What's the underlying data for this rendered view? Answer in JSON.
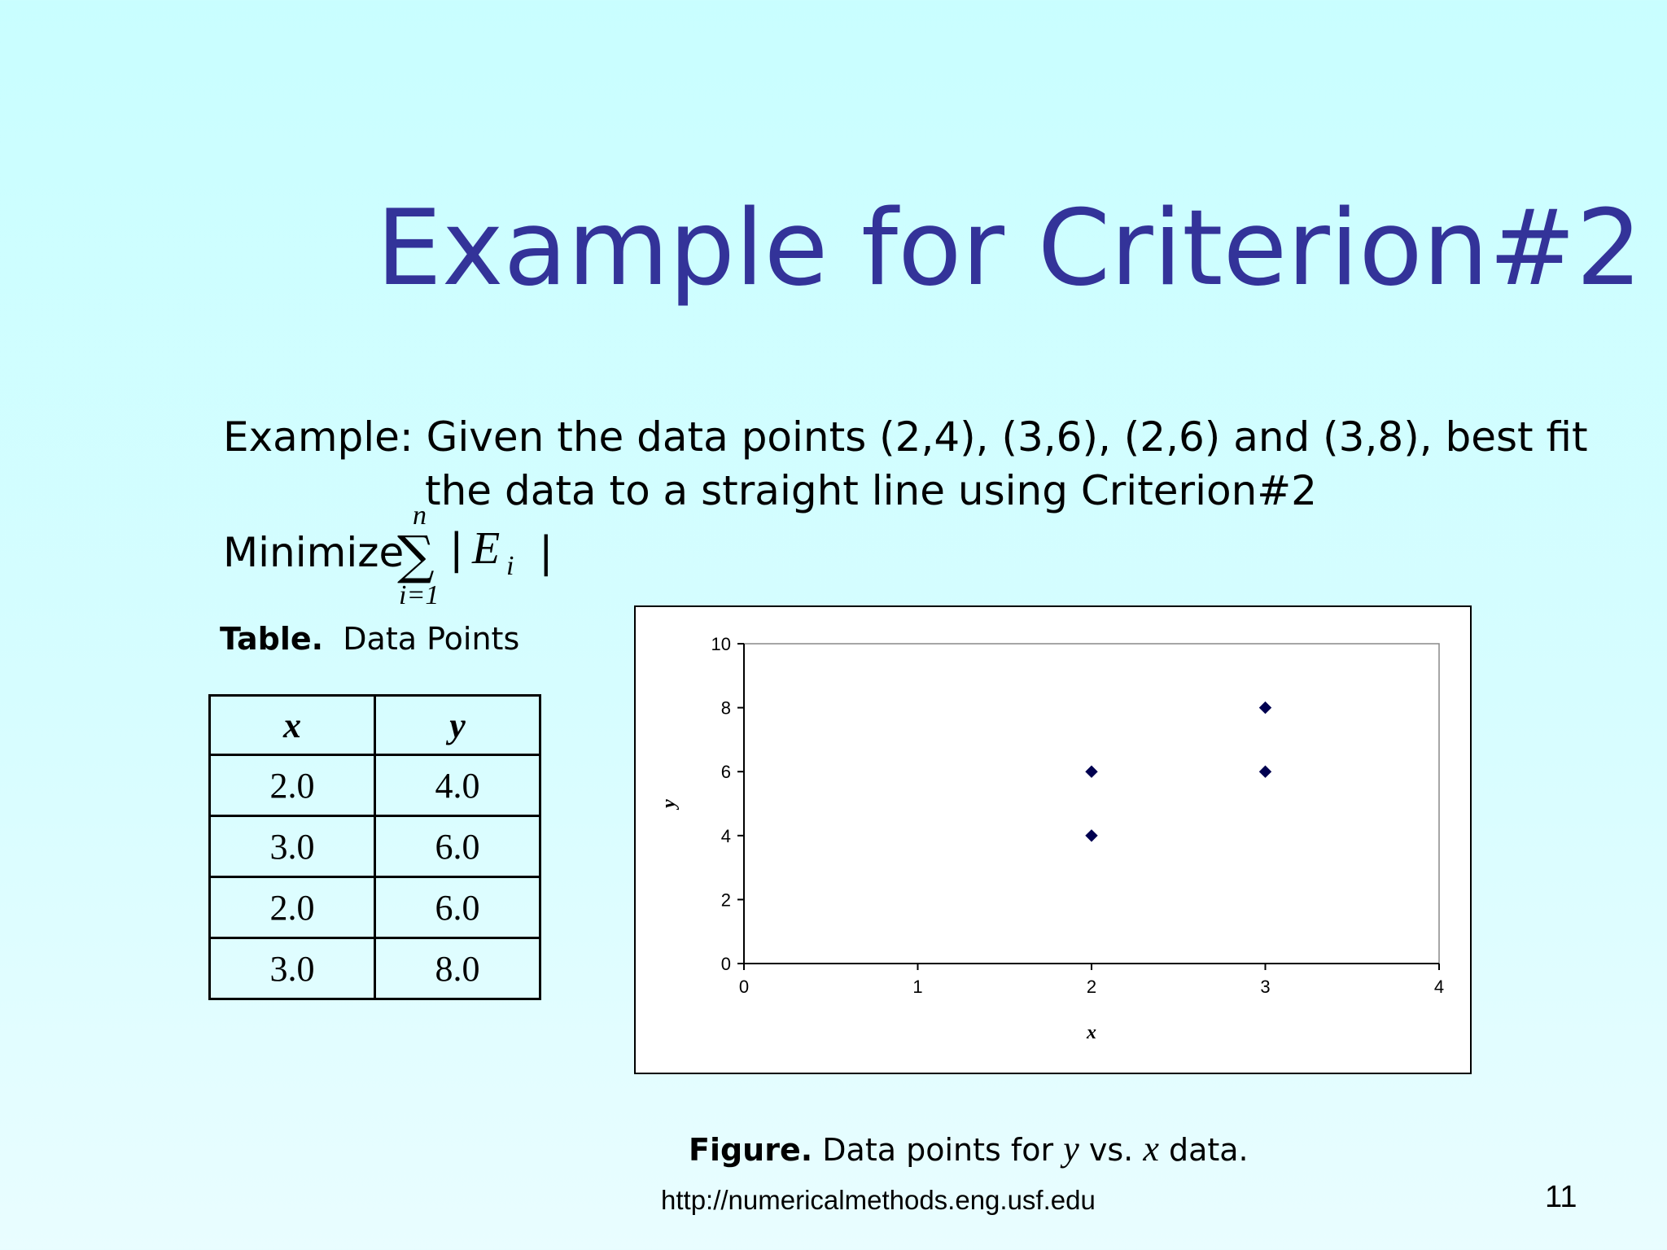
{
  "slide": {
    "title": "Example for Criterion#2",
    "example_line1": "Example: Given the data points (2,4), (3,6), (2,6) and (3,8), best fit",
    "example_line2": "the data to a straight line using Criterion#2",
    "minimize_label": "Minimize",
    "formula": {
      "upper_limit": "n",
      "lower_limit": "i=1",
      "term": "| E_i |"
    },
    "page_number": "11",
    "footer_url": "http://numericalmethods.eng.usf.edu"
  },
  "table": {
    "caption_bold": "Table.",
    "caption_text": "Data Points",
    "headers": [
      "x",
      "y"
    ],
    "rows": [
      [
        "2.0",
        "4.0"
      ],
      [
        "3.0",
        "6.0"
      ],
      [
        "2.0",
        "6.0"
      ],
      [
        "3.0",
        "8.0"
      ]
    ]
  },
  "figure": {
    "caption_bold": "Figure.",
    "caption_pre": "Data points for",
    "caption_y": "y",
    "caption_mid": "vs.",
    "caption_x": "x",
    "caption_post": "data."
  },
  "chart_data": {
    "type": "scatter",
    "title": "",
    "xlabel": "x",
    "ylabel": "y",
    "xlim": [
      0,
      4
    ],
    "ylim": [
      0,
      10
    ],
    "xticks": [
      0,
      1,
      2,
      3,
      4
    ],
    "yticks": [
      0,
      2,
      4,
      6,
      8,
      10
    ],
    "grid": false,
    "legend": "none",
    "marker": "diamond",
    "marker_color": "#000050",
    "series": [
      {
        "points": [
          [
            2,
            4
          ],
          [
            3,
            6
          ],
          [
            2,
            6
          ],
          [
            3,
            8
          ]
        ]
      }
    ]
  }
}
